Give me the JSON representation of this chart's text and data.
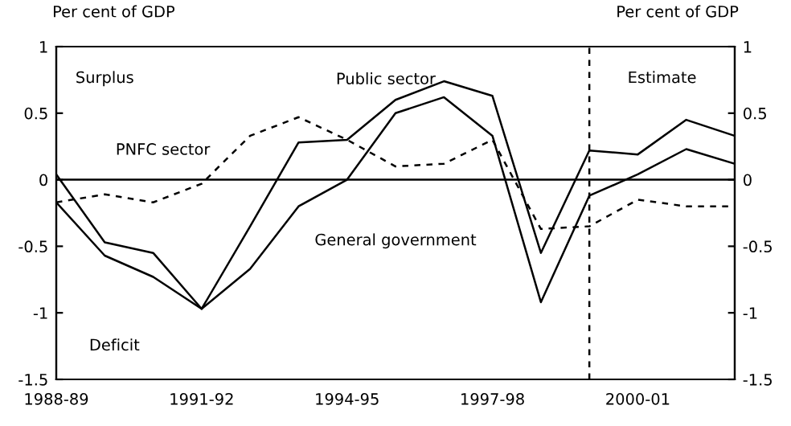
{
  "chart_data": {
    "type": "line",
    "ylabel": "Per cent of GDP",
    "y2label": "Per cent of GDP",
    "categories": [
      "1988-89",
      null,
      null,
      "1991-92",
      null,
      null,
      "1994-95",
      null,
      null,
      "1997-98",
      null,
      null,
      "2000-01",
      null,
      null
    ],
    "series": [
      {
        "name": "Public sector",
        "color": "#000000",
        "line_style": "solid",
        "values": [
          0.04,
          -0.47,
          -0.55,
          -0.97,
          -0.35,
          0.28,
          0.3,
          0.6,
          0.74,
          0.63,
          -0.55,
          0.22,
          0.19,
          0.45,
          0.33
        ]
      },
      {
        "name": "General government",
        "color": "#000000",
        "line_style": "solid",
        "values": [
          -0.17,
          -0.57,
          -0.73,
          -0.97,
          -0.67,
          -0.2,
          0.0,
          0.5,
          0.62,
          0.33,
          -0.92,
          -0.12,
          0.04,
          0.23,
          0.12
        ]
      },
      {
        "name": "PNFC sector",
        "color": "#000000",
        "line_style": "dashed",
        "values": [
          -0.17,
          -0.11,
          -0.17,
          -0.03,
          0.33,
          0.47,
          0.3,
          0.1,
          0.12,
          0.3,
          -0.37,
          -0.35,
          -0.15,
          -0.2,
          -0.2
        ]
      }
    ],
    "ylim": [
      -1.5,
      1
    ],
    "yticks": [
      -1.5,
      -1,
      -0.5,
      0,
      0.5,
      1
    ],
    "y2lim": [
      -1.5,
      1
    ],
    "y2ticks": [
      -1.5,
      -1,
      -0.5,
      0,
      0.5,
      1
    ],
    "ref_lines": [
      {
        "axis": "y",
        "value": 0,
        "line_style": "solid",
        "color": "#000000"
      }
    ],
    "annotations": [
      "Surplus",
      "Deficit",
      "Estimate"
    ],
    "grid": false,
    "legend": false,
    "marker": "none"
  }
}
